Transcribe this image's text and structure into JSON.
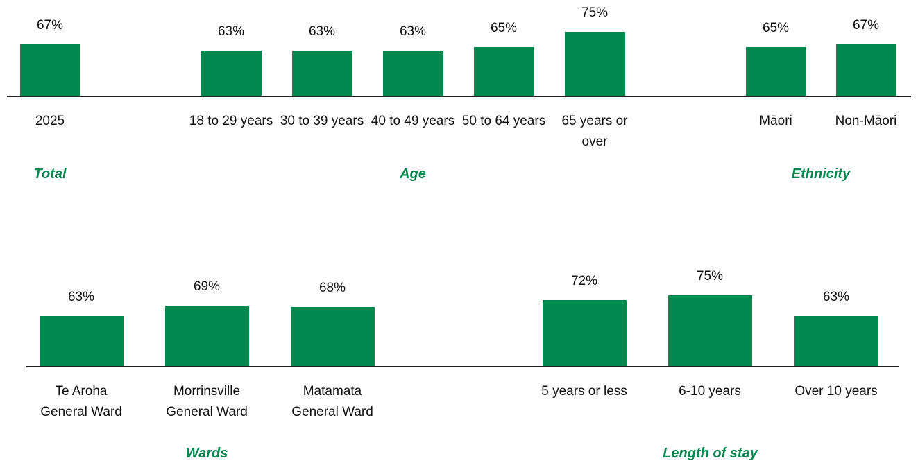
{
  "chart_data": [
    {
      "type": "bar",
      "color": "#00884f",
      "ylim": [
        34,
        80
      ],
      "groups": [
        {
          "name": "Total",
          "categories": [
            "2025"
          ],
          "values": [
            67
          ],
          "value_labels": [
            "67%"
          ]
        },
        {
          "name": "Age",
          "categories": [
            "18 to 29 years",
            "30 to 39 years",
            "40 to 49 years",
            "50 to 64 years",
            "65 years or over"
          ],
          "values": [
            63,
            63,
            63,
            65,
            75
          ],
          "value_labels": [
            "63%",
            "63%",
            "63%",
            "65%",
            "75%"
          ]
        },
        {
          "name": "Ethnicity",
          "categories": [
            "Māori",
            "Non-Māori"
          ],
          "values": [
            65,
            67
          ],
          "value_labels": [
            "65%",
            "67%"
          ]
        }
      ]
    },
    {
      "type": "bar",
      "color": "#00884f",
      "ylim": [
        34,
        80
      ],
      "groups": [
        {
          "name": "Wards",
          "categories": [
            "Te Aroha General Ward",
            "Morrinsville General Ward",
            "Matamata General Ward"
          ],
          "values": [
            63,
            69,
            68
          ],
          "value_labels": [
            "63%",
            "69%",
            "68%"
          ]
        },
        {
          "name": "Length of stay",
          "categories": [
            "5 years or less",
            "6-10 years",
            "Over 10 years"
          ],
          "values": [
            72,
            75,
            63
          ],
          "value_labels": [
            "72%",
            "75%",
            "63%"
          ]
        }
      ]
    }
  ]
}
